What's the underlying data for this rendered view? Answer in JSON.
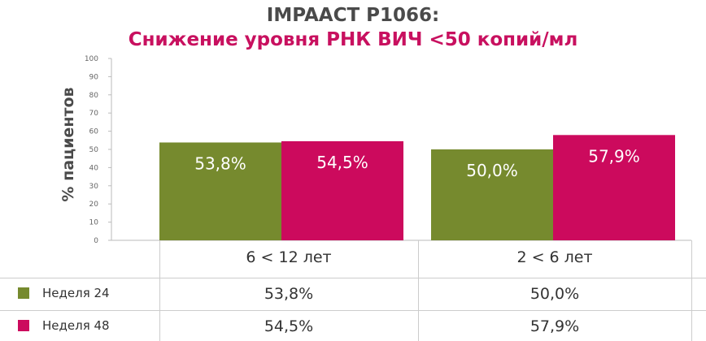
{
  "chart_data": {
    "type": "bar",
    "title": "IMPAACT P1066:",
    "subtitle": "Снижение уровня РНК ВИЧ <50 копий/мл",
    "ylabel": "% пациентов",
    "xlabel": "",
    "ylim": [
      0,
      100
    ],
    "yticks": [
      0,
      10,
      20,
      30,
      40,
      50,
      60,
      70,
      80,
      90,
      100
    ],
    "grid": false,
    "legend_position": "bottom-left",
    "categories": [
      "6 < 12 лет",
      "2 < 6 лет"
    ],
    "series": [
      {
        "name": "Неделя 24",
        "color": "#768a2e",
        "values": [
          53.8,
          50.0
        ],
        "labels": [
          "53,8%",
          "50,0%"
        ]
      },
      {
        "name": "Неделя 48",
        "color": "#cc0a5d",
        "values": [
          54.5,
          57.9
        ],
        "labels": [
          "54,5%",
          "57,9%"
        ]
      }
    ]
  }
}
